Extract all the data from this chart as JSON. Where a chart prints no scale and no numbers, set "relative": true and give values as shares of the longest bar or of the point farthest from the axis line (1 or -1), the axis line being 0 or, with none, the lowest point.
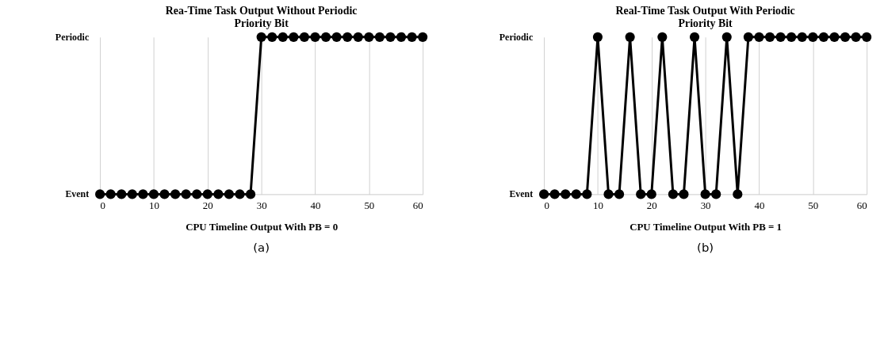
{
  "chart_data": [
    {
      "type": "line",
      "relative": true,
      "title": "Rea-Time Task Output Without Periodic Priority Bit",
      "xlabel": "CPU Timeline Output With PB = 0",
      "x": [
        0,
        2,
        4,
        6,
        8,
        10,
        12,
        14,
        16,
        18,
        20,
        22,
        24,
        26,
        28,
        30,
        32,
        34,
        36,
        38,
        40,
        42,
        44,
        46,
        48,
        50,
        52,
        54,
        56,
        58,
        60
      ],
      "series": [
        {
          "color": "#000000",
          "values": [
            0,
            0,
            0,
            0,
            0,
            0,
            0,
            0,
            0,
            0,
            0,
            0,
            0,
            0,
            0,
            1,
            1,
            1,
            1,
            1,
            1,
            1,
            1,
            1,
            1,
            1,
            1,
            1,
            1,
            1,
            1
          ]
        }
      ],
      "xlim": [
        0,
        60
      ],
      "xticks": [
        0,
        10,
        20,
        30,
        40,
        50,
        60
      ],
      "grid": "x",
      "marker": "circle",
      "line_style": "solid",
      "annotations": [
        "Event",
        "Periodic",
        "(a)"
      ]
    },
    {
      "type": "line",
      "relative": true,
      "title": "Real-Time Task Output With Periodic Priority Bit",
      "xlabel": "CPU Timeline Output With PB = 1",
      "x": [
        0,
        2,
        4,
        6,
        8,
        10,
        12,
        14,
        16,
        18,
        20,
        22,
        24,
        26,
        28,
        30,
        32,
        34,
        36,
        38,
        40,
        42,
        44,
        46,
        48,
        50,
        52,
        54,
        56,
        58,
        60
      ],
      "series": [
        {
          "color": "#000000",
          "values": [
            0,
            0,
            0,
            0,
            0,
            1,
            0,
            0,
            1,
            0,
            0,
            1,
            0,
            0,
            1,
            0,
            0,
            1,
            0,
            1,
            1,
            1,
            1,
            1,
            1,
            1,
            1,
            1,
            1,
            1,
            1
          ]
        }
      ],
      "xlim": [
        0,
        60
      ],
      "xticks": [
        0,
        10,
        20,
        30,
        40,
        50,
        60
      ],
      "grid": "x",
      "marker": "circle",
      "line_style": "solid",
      "annotations": [
        "Event",
        "Periodic",
        "(b)"
      ]
    }
  ]
}
